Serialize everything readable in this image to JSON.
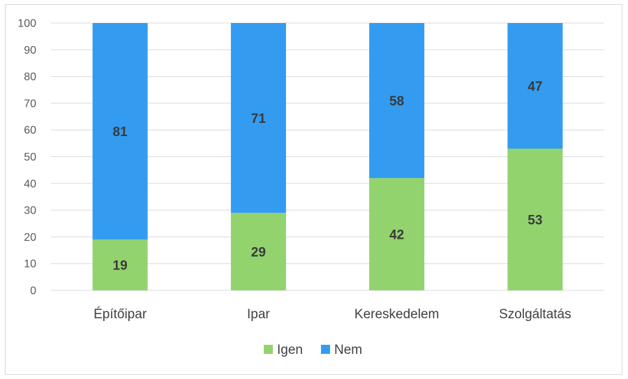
{
  "chart_data": {
    "type": "bar",
    "stacked": true,
    "percent_stacked": true,
    "categories": [
      "Építőipar",
      "Ipar",
      "Kereskedelem",
      "Szolgáltatás"
    ],
    "series": [
      {
        "name": "Igen",
        "values": [
          19,
          29,
          42,
          53
        ],
        "color": "#92d36e"
      },
      {
        "name": "Nem",
        "values": [
          81,
          71,
          58,
          47
        ],
        "color": "#339cf0"
      }
    ],
    "title": "",
    "xlabel": "",
    "ylabel": "",
    "ylim": [
      0,
      100
    ],
    "yticks": [
      0,
      10,
      20,
      30,
      40,
      50,
      60,
      70,
      80,
      90,
      100
    ],
    "grid": true,
    "legend": "bottom"
  }
}
